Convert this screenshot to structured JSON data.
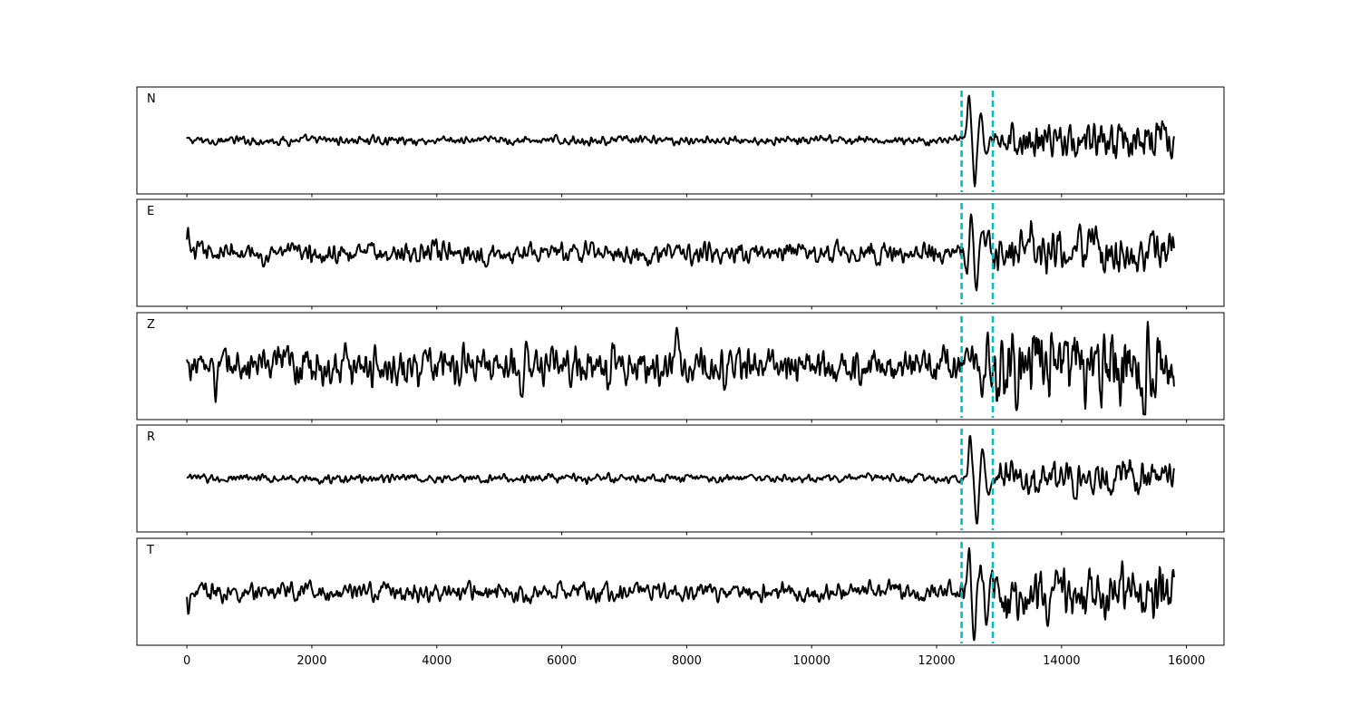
{
  "chart_data": {
    "type": "line",
    "xlim": [
      -800,
      16600
    ],
    "x_ticks": [
      0,
      2000,
      4000,
      6000,
      8000,
      10000,
      12000,
      14000,
      16000
    ],
    "x_tick_labels": [
      "0",
      "2000",
      "4000",
      "6000",
      "8000",
      "10000",
      "12000",
      "14000",
      "16000"
    ],
    "x_end": 15800,
    "pick_lines": [
      12400,
      12900
    ],
    "pick_color": "#00bfbf",
    "trace_color": "#000000",
    "grid": false,
    "panels": [
      {
        "label": "N",
        "noise_amp": 0.05,
        "ylim": [
          -1,
          1
        ],
        "events": [
          {
            "x": 12520,
            "a": 0.85,
            "w": 38
          },
          {
            "x": 12610,
            "a": -0.88,
            "w": 38
          },
          {
            "x": 12710,
            "a": 0.55,
            "w": 38
          },
          {
            "x": 12800,
            "a": -0.3,
            "w": 40
          }
        ],
        "coda": {
          "start": 12900,
          "amp": 0.22
        },
        "end_events": [
          {
            "x": 15650,
            "a": 0.35,
            "w": 50
          }
        ]
      },
      {
        "label": "E",
        "noise_amp": 0.12,
        "ylim": [
          -1,
          1
        ],
        "events": [
          {
            "x": 20,
            "a": 0.35,
            "w": 25
          },
          {
            "x": 12480,
            "a": -0.5,
            "w": 35
          },
          {
            "x": 12560,
            "a": 0.82,
            "w": 35
          },
          {
            "x": 12640,
            "a": -0.75,
            "w": 35
          },
          {
            "x": 12740,
            "a": 0.45,
            "w": 35
          },
          {
            "x": 12820,
            "a": 0.4,
            "w": 35
          }
        ],
        "coda": {
          "start": 12900,
          "amp": 0.25
        },
        "end_events": [
          {
            "x": 13500,
            "a": 0.45,
            "w": 40
          }
        ]
      },
      {
        "label": "Z",
        "noise_amp": 0.22,
        "ylim": [
          -1,
          1
        ],
        "events": [
          {
            "x": 470,
            "a": -0.35,
            "w": 30
          },
          {
            "x": 2080,
            "a": 0.55,
            "w": 25
          },
          {
            "x": 2060,
            "a": -0.4,
            "w": 25
          },
          {
            "x": 5360,
            "a": -0.85,
            "w": 35
          },
          {
            "x": 5420,
            "a": 0.45,
            "w": 35
          },
          {
            "x": 6820,
            "a": 0.72,
            "w": 40
          },
          {
            "x": 6760,
            "a": -0.6,
            "w": 40
          },
          {
            "x": 7850,
            "a": 0.55,
            "w": 35
          },
          {
            "x": 12560,
            "a": 0.4,
            "w": 35
          },
          {
            "x": 12700,
            "a": -0.45,
            "w": 35
          }
        ],
        "coda": {
          "start": 12800,
          "amp": 0.45
        },
        "end_events": [
          {
            "x": 15300,
            "a": -0.5,
            "w": 40
          }
        ]
      },
      {
        "label": "R",
        "noise_amp": 0.05,
        "ylim": [
          -1,
          1
        ],
        "events": [
          {
            "x": 12540,
            "a": 0.85,
            "w": 38
          },
          {
            "x": 12640,
            "a": -0.9,
            "w": 38
          },
          {
            "x": 12740,
            "a": 0.6,
            "w": 38
          },
          {
            "x": 12830,
            "a": -0.3,
            "w": 40
          }
        ],
        "coda": {
          "start": 12900,
          "amp": 0.2
        },
        "end_events": [
          {
            "x": 15650,
            "a": 0.35,
            "w": 50
          }
        ]
      },
      {
        "label": "T",
        "noise_amp": 0.11,
        "ylim": [
          -1,
          1
        ],
        "events": [
          {
            "x": 20,
            "a": -0.3,
            "w": 25
          },
          {
            "x": 12520,
            "a": 0.78,
            "w": 35
          },
          {
            "x": 12600,
            "a": -0.92,
            "w": 35
          },
          {
            "x": 12700,
            "a": 0.6,
            "w": 35
          },
          {
            "x": 12800,
            "a": -0.55,
            "w": 35
          },
          {
            "x": 12880,
            "a": 0.5,
            "w": 35
          }
        ],
        "coda": {
          "start": 12900,
          "amp": 0.3
        },
        "end_events": [
          {
            "x": 13650,
            "a": 0.4,
            "w": 40
          }
        ]
      }
    ]
  }
}
